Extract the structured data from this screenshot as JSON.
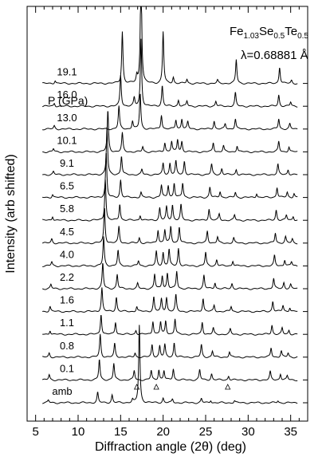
{
  "chart_data": {
    "type": "line",
    "xlabel": "Diffraction angle (2θ) (deg)",
    "ylabel": "Intensity (arb shifted)",
    "xlim": [
      4,
      37
    ],
    "x_ticks": [
      5,
      10,
      15,
      20,
      25,
      30,
      35
    ],
    "compound": {
      "base": "Fe",
      "s1": "1.03",
      "e2": "Se",
      "s2": "0.5",
      "e3": "Te",
      "s3": "0.5"
    },
    "wavelength": "λ=0.68881 Å",
    "pressure_header": "P (GPa)",
    "impurity_markers": [
      16.9,
      19.2,
      27.6
    ],
    "series": [
      {
        "name": "amb",
        "peaks": [
          [
            6.5,
            0.25
          ],
          [
            12.3,
            1.0
          ],
          [
            14.0,
            0.75
          ],
          [
            16.4,
            0.3
          ],
          [
            17.2,
            7.5
          ],
          [
            20.0,
            0.45
          ],
          [
            21.1,
            0.35
          ],
          [
            24.5,
            0.4
          ],
          [
            25.6,
            0.25
          ],
          [
            28.4,
            0.2
          ],
          [
            33.5,
            0.2
          ]
        ]
      },
      {
        "name": "0.1",
        "peaks": [
          [
            6.6,
            0.5
          ],
          [
            12.5,
            2.0
          ],
          [
            14.2,
            1.6
          ],
          [
            16.6,
            0.9
          ],
          [
            18.6,
            0.9
          ],
          [
            19.5,
            1.0
          ],
          [
            20.1,
            0.9
          ],
          [
            21.2,
            1.1
          ],
          [
            24.3,
            1.0
          ],
          [
            25.7,
            0.6
          ],
          [
            27.7,
            0.4
          ],
          [
            32.6,
            0.8
          ],
          [
            33.8,
            0.6
          ],
          [
            34.6,
            0.4
          ]
        ]
      },
      {
        "name": "0.8",
        "peaks": [
          [
            6.6,
            0.4
          ],
          [
            12.6,
            2.2
          ],
          [
            14.3,
            1.3
          ],
          [
            16.7,
            0.4
          ],
          [
            18.7,
            1.2
          ],
          [
            19.6,
            1.1
          ],
          [
            20.2,
            1.2
          ],
          [
            21.3,
            1.4
          ],
          [
            24.5,
            1.2
          ],
          [
            25.8,
            0.6
          ],
          [
            27.8,
            0.5
          ],
          [
            32.7,
            0.9
          ],
          [
            33.9,
            0.6
          ],
          [
            34.7,
            0.4
          ]
        ]
      },
      {
        "name": "1.1",
        "peaks": [
          [
            6.7,
            0.4
          ],
          [
            12.7,
            2.0
          ],
          [
            14.4,
            1.2
          ],
          [
            16.8,
            0.4
          ],
          [
            18.8,
            1.3
          ],
          [
            19.7,
            1.2
          ],
          [
            20.3,
            1.3
          ],
          [
            21.4,
            1.5
          ],
          [
            24.6,
            1.2
          ],
          [
            25.9,
            0.6
          ],
          [
            27.9,
            0.5
          ],
          [
            32.8,
            0.9
          ],
          [
            34.0,
            0.6
          ],
          [
            34.8,
            0.4
          ]
        ]
      },
      {
        "name": "1.6",
        "peaks": [
          [
            6.7,
            0.5
          ],
          [
            12.8,
            2.3
          ],
          [
            14.5,
            1.4
          ],
          [
            16.9,
            0.5
          ],
          [
            18.9,
            1.4
          ],
          [
            19.8,
            1.2
          ],
          [
            20.4,
            1.4
          ],
          [
            21.5,
            1.6
          ],
          [
            24.7,
            1.3
          ],
          [
            26.0,
            0.6
          ],
          [
            28.0,
            0.5
          ],
          [
            32.9,
            1.0
          ],
          [
            34.1,
            0.6
          ],
          [
            34.9,
            0.4
          ]
        ]
      },
      {
        "name": "2.2",
        "peaks": [
          [
            6.8,
            0.4
          ],
          [
            12.9,
            2.5
          ],
          [
            14.6,
            1.4
          ],
          [
            17.0,
            0.5
          ],
          [
            19.0,
            1.4
          ],
          [
            19.9,
            1.3
          ],
          [
            20.5,
            1.5
          ],
          [
            21.6,
            1.7
          ],
          [
            24.8,
            1.3
          ],
          [
            26.1,
            0.6
          ],
          [
            28.1,
            0.5
          ],
          [
            33.0,
            1.0
          ],
          [
            34.2,
            0.6
          ],
          [
            35.0,
            0.4
          ]
        ]
      },
      {
        "name": "4.0",
        "peaks": [
          [
            6.9,
            0.4
          ],
          [
            13.0,
            2.8
          ],
          [
            14.7,
            1.5
          ],
          [
            17.1,
            0.5
          ],
          [
            19.2,
            1.4
          ],
          [
            20.0,
            1.3
          ],
          [
            20.7,
            1.6
          ],
          [
            21.8,
            1.7
          ],
          [
            25.0,
            1.3
          ],
          [
            26.3,
            0.6
          ],
          [
            28.2,
            0.5
          ],
          [
            33.1,
            1.0
          ],
          [
            34.3,
            0.6
          ],
          [
            35.1,
            0.4
          ]
        ]
      },
      {
        "name": "4.5",
        "peaks": [
          [
            6.9,
            0.4
          ],
          [
            13.1,
            3.5
          ],
          [
            14.8,
            1.6
          ],
          [
            17.2,
            0.5
          ],
          [
            19.4,
            1.3
          ],
          [
            20.2,
            1.3
          ],
          [
            20.9,
            1.6
          ],
          [
            21.9,
            1.6
          ],
          [
            25.2,
            1.2
          ],
          [
            26.4,
            0.6
          ],
          [
            28.3,
            0.5
          ],
          [
            33.2,
            1.0
          ],
          [
            34.4,
            0.6
          ],
          [
            35.2,
            0.4
          ]
        ]
      },
      {
        "name": "5.8",
        "peaks": [
          [
            7.0,
            0.4
          ],
          [
            13.2,
            4.0
          ],
          [
            14.9,
            1.6
          ],
          [
            17.3,
            0.5
          ],
          [
            19.6,
            1.2
          ],
          [
            20.4,
            1.3
          ],
          [
            21.1,
            1.5
          ],
          [
            22.1,
            1.5
          ],
          [
            25.4,
            1.1
          ],
          [
            26.6,
            0.6
          ],
          [
            28.4,
            0.5
          ],
          [
            33.3,
            1.0
          ],
          [
            34.5,
            0.5
          ],
          [
            35.3,
            0.4
          ]
        ]
      },
      {
        "name": "6.5",
        "peaks": [
          [
            7.0,
            0.3
          ],
          [
            13.3,
            4.4
          ],
          [
            15.0,
            1.7
          ],
          [
            17.4,
            0.5
          ],
          [
            19.8,
            1.2
          ],
          [
            20.6,
            1.2
          ],
          [
            21.3,
            1.4
          ],
          [
            22.3,
            1.4
          ],
          [
            25.5,
            1.0
          ],
          [
            26.7,
            0.6
          ],
          [
            28.5,
            0.5
          ],
          [
            31.0,
            0.4
          ],
          [
            33.4,
            1.0
          ],
          [
            34.6,
            0.5
          ],
          [
            35.4,
            0.4
          ]
        ]
      },
      {
        "name": "9.1",
        "peaks": [
          [
            7.1,
            0.3
          ],
          [
            13.4,
            4.6
          ],
          [
            15.1,
            1.8
          ],
          [
            17.5,
            0.5
          ],
          [
            20.0,
            1.1
          ],
          [
            20.8,
            1.1
          ],
          [
            21.5,
            1.3
          ],
          [
            22.5,
            1.3
          ],
          [
            25.7,
            1.0
          ],
          [
            26.9,
            0.6
          ],
          [
            28.6,
            0.5
          ],
          [
            33.5,
            1.0
          ],
          [
            34.7,
            0.5
          ]
        ]
      },
      {
        "name": "10.1",
        "peaks": [
          [
            7.1,
            0.3
          ],
          [
            13.5,
            4.0
          ],
          [
            15.2,
            1.8
          ],
          [
            17.6,
            0.5
          ],
          [
            20.2,
            0.9
          ],
          [
            21.0,
            1.0
          ],
          [
            21.7,
            1.2
          ],
          [
            22.2,
            1.0
          ],
          [
            25.9,
            0.9
          ],
          [
            27.1,
            0.6
          ],
          [
            28.7,
            0.6
          ],
          [
            33.6,
            1.0
          ],
          [
            34.8,
            0.5
          ]
        ]
      },
      {
        "name": "13.0",
        "peaks": [
          [
            7.2,
            0.3
          ],
          [
            14.8,
            2.2
          ],
          [
            16.4,
            0.8
          ],
          [
            17.3,
            3.5
          ],
          [
            19.8,
            1.4
          ],
          [
            21.5,
            0.9
          ],
          [
            22.2,
            1.0
          ],
          [
            22.9,
            0.7
          ],
          [
            26.0,
            0.8
          ],
          [
            27.3,
            0.5
          ],
          [
            28.5,
            1.0
          ],
          [
            33.6,
            1.0
          ],
          [
            34.9,
            0.5
          ]
        ]
      },
      {
        "name": "16.0",
        "peaks": [
          [
            7.2,
            0.3
          ],
          [
            15.0,
            3.0
          ],
          [
            16.6,
            0.8
          ],
          [
            17.4,
            6.5
          ],
          [
            19.9,
            2.0
          ],
          [
            21.8,
            0.6
          ],
          [
            22.8,
            0.5
          ],
          [
            26.2,
            0.5
          ],
          [
            28.5,
            1.3
          ],
          [
            33.6,
            1.1
          ],
          [
            35.0,
            0.4
          ]
        ]
      },
      {
        "name": "19.1",
        "peaks": [
          [
            7.3,
            0.3
          ],
          [
            15.2,
            5.0
          ],
          [
            16.9,
            0.7
          ],
          [
            17.4,
            12.0
          ],
          [
            20.0,
            5.0
          ],
          [
            21.2,
            0.6
          ],
          [
            22.8,
            0.4
          ],
          [
            26.4,
            0.3
          ],
          [
            28.6,
            2.3
          ],
          [
            33.7,
            1.6
          ],
          [
            35.1,
            0.3
          ]
        ]
      }
    ]
  }
}
